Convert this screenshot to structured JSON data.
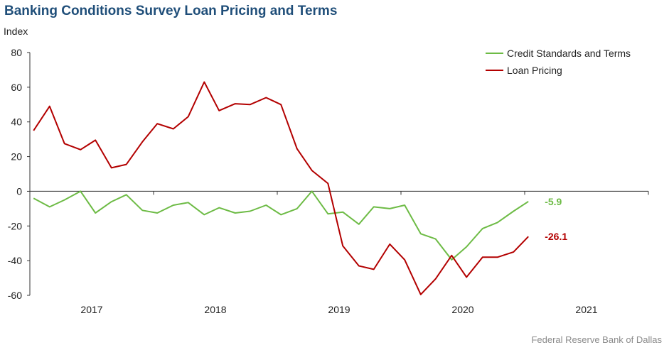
{
  "header": {
    "title": "Banking Conditions Survey Loan Pricing and Terms",
    "ylabel": "Index"
  },
  "footer": {
    "source": "Federal Reserve Bank of Dallas"
  },
  "colors": {
    "credit": "#6dbb45",
    "pricing": "#b30000",
    "title": "#1f4e79"
  },
  "chart_data": {
    "type": "line",
    "ylabel": "Index",
    "ylim": [
      -60,
      80
    ],
    "yticks": [
      80,
      60,
      40,
      20,
      0,
      -20,
      -40,
      -60
    ],
    "xlim": [
      2016.5,
      2021.5
    ],
    "xticks": [
      {
        "label": "2017",
        "value": 2017
      },
      {
        "label": "2018",
        "value": 2018
      },
      {
        "label": "2019",
        "value": 2019
      },
      {
        "label": "2020",
        "value": 2020
      },
      {
        "label": "2021",
        "value": 2021
      }
    ],
    "legend_position": "top-right",
    "grid": false,
    "x": [
      "2016.53",
      "2016.66",
      "2016.78",
      "2016.91",
      "2017.03",
      "2017.16",
      "2017.28",
      "2017.41",
      "2017.53",
      "2017.66",
      "2017.78",
      "2017.91",
      "2018.03",
      "2018.16",
      "2018.28",
      "2018.41",
      "2018.53",
      "2018.66",
      "2018.78",
      "2018.91",
      "2019.03",
      "2019.16",
      "2019.28",
      "2019.41",
      "2019.53",
      "2019.66",
      "2019.78",
      "2019.91",
      "2020.03",
      "2020.16",
      "2020.28",
      "2020.41",
      "2020.53"
    ],
    "series": [
      {
        "name": "Credit Standards and Terms",
        "color": "#6dbb45",
        "end_label": "-5.9",
        "values": [
          -4,
          -9,
          -5,
          0,
          -12.5,
          -6,
          -2,
          -11,
          -12.5,
          -8,
          -6.5,
          -13.5,
          -9.5,
          -12.5,
          -11.5,
          -8,
          -13.5,
          -10,
          0,
          -13,
          -12,
          -19,
          -9,
          -10,
          -8,
          -24.5,
          -27.5,
          -39.5,
          -32,
          -21.5,
          -18,
          -11.5,
          -5.9
        ]
      },
      {
        "name": "Loan Pricing",
        "color": "#b30000",
        "end_label": "-26.1",
        "values": [
          35,
          49,
          27.5,
          24,
          29.5,
          13.5,
          15.5,
          28.5,
          39,
          36,
          43,
          63,
          46.5,
          50.5,
          50,
          54,
          50,
          24.5,
          12,
          4.5,
          -31.5,
          -43,
          -45,
          -30.5,
          -39.5,
          -59.5,
          -50.5,
          -37,
          -49.5,
          -38,
          -38,
          -35,
          -26.1
        ]
      }
    ]
  }
}
